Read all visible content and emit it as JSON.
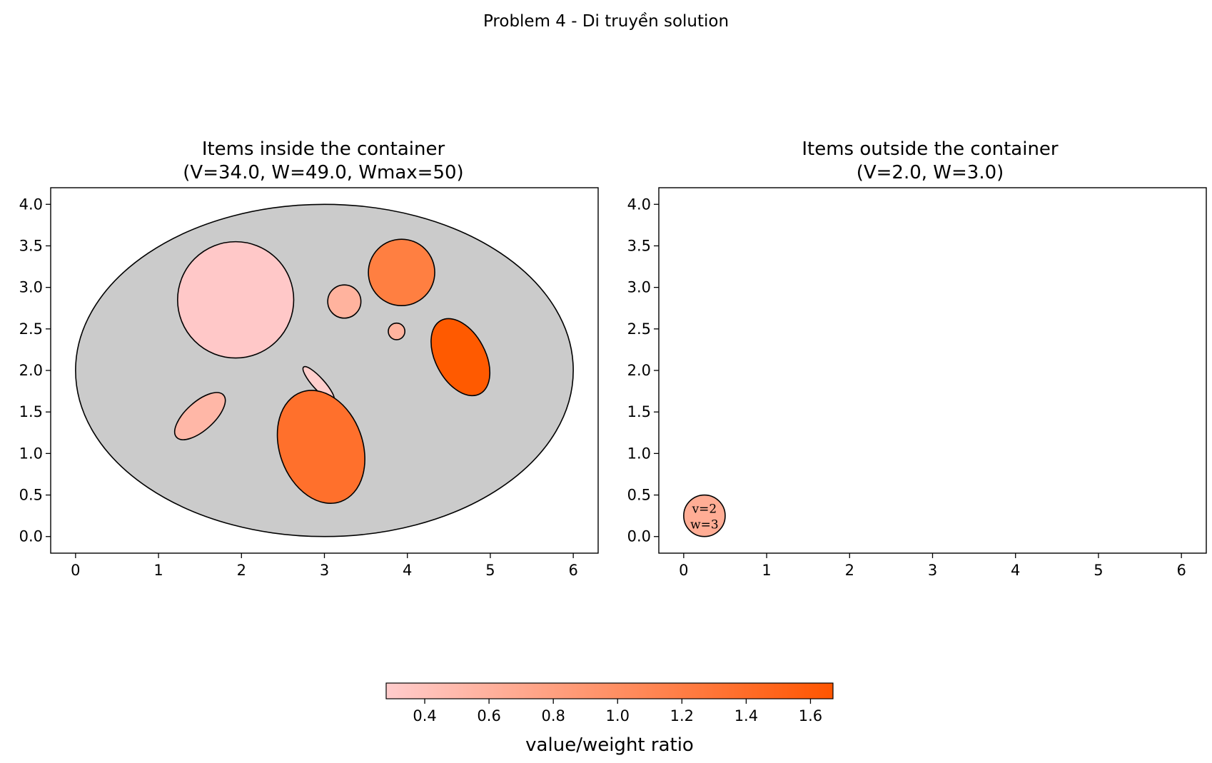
{
  "suptitle": "Problem 4 - Di truyền solution",
  "chart_data": [
    {
      "type": "scatter",
      "subtype": "packing",
      "title_lines": [
        "Items inside the container",
        "(V=34.0, W=49.0, Wmax=50)"
      ],
      "xlim": [
        -0.3,
        6.3
      ],
      "ylim": [
        -0.2,
        4.2
      ],
      "xticks": [
        "0",
        "1",
        "2",
        "3",
        "4",
        "5",
        "6"
      ],
      "yticks": [
        "0.0",
        "0.5",
        "1.0",
        "1.5",
        "2.0",
        "2.5",
        "3.0",
        "3.5",
        "4.0"
      ],
      "grid": false,
      "container": {
        "shape": "ellipse",
        "cx": 3.0,
        "cy": 2.0,
        "rx": 3.0,
        "ry": 2.0,
        "color": "#cbcbcb"
      },
      "items": [
        {
          "shape": "circle",
          "cx": 1.93,
          "cy": 2.85,
          "rx": 0.7,
          "ry": 0.7,
          "angle": 0,
          "color": "#ffc8c8"
        },
        {
          "shape": "circle",
          "cx": 3.93,
          "cy": 3.18,
          "rx": 0.4,
          "ry": 0.4,
          "angle": 0,
          "color": "#ff7f41"
        },
        {
          "shape": "circle",
          "cx": 3.24,
          "cy": 2.83,
          "rx": 0.2,
          "ry": 0.2,
          "angle": 0,
          "color": "#ffb39e"
        },
        {
          "shape": "circle",
          "cx": 3.87,
          "cy": 2.47,
          "rx": 0.1,
          "ry": 0.1,
          "angle": 0,
          "color": "#ffb39e"
        },
        {
          "shape": "ellipse",
          "cx": 4.64,
          "cy": 2.16,
          "rx": 0.3,
          "ry": 0.5,
          "angle": 28,
          "color": "#ff5a00"
        },
        {
          "shape": "ellipse",
          "cx": 2.93,
          "cy": 1.84,
          "rx": 0.07,
          "ry": 0.27,
          "angle": 42,
          "color": "#ffcfcd"
        },
        {
          "shape": "ellipse",
          "cx": 1.5,
          "cy": 1.45,
          "rx": 0.17,
          "ry": 0.38,
          "angle": -48,
          "color": "#ffb7a7"
        },
        {
          "shape": "ellipse",
          "cx": 2.96,
          "cy": 1.08,
          "rx": 0.5,
          "ry": 0.7,
          "angle": 20,
          "color": "#ff702c"
        }
      ]
    },
    {
      "type": "scatter",
      "subtype": "packing",
      "title_lines": [
        "Items outside the container",
        "(V=2.0, W=3.0)"
      ],
      "xlim": [
        -0.3,
        6.3
      ],
      "ylim": [
        -0.2,
        4.2
      ],
      "xticks": [
        "0",
        "1",
        "2",
        "3",
        "4",
        "5",
        "6"
      ],
      "yticks": [
        "0.0",
        "0.5",
        "1.0",
        "1.5",
        "2.0",
        "2.5",
        "3.0",
        "3.5",
        "4.0"
      ],
      "grid": false,
      "items": [
        {
          "shape": "circle",
          "cx": 0.25,
          "cy": 0.25,
          "rx": 0.25,
          "ry": 0.25,
          "angle": 0,
          "color": "#ffad95",
          "label_lines": [
            "v=2",
            "w=3"
          ]
        }
      ]
    }
  ],
  "colorbar": {
    "label": "value/weight ratio",
    "range": [
      0.28,
      1.67
    ],
    "ticks": [
      "0.4",
      "0.6",
      "0.8",
      "1.0",
      "1.2",
      "1.4",
      "1.6"
    ],
    "color_start": "#ffcccc",
    "color_end": "#ff5500"
  }
}
